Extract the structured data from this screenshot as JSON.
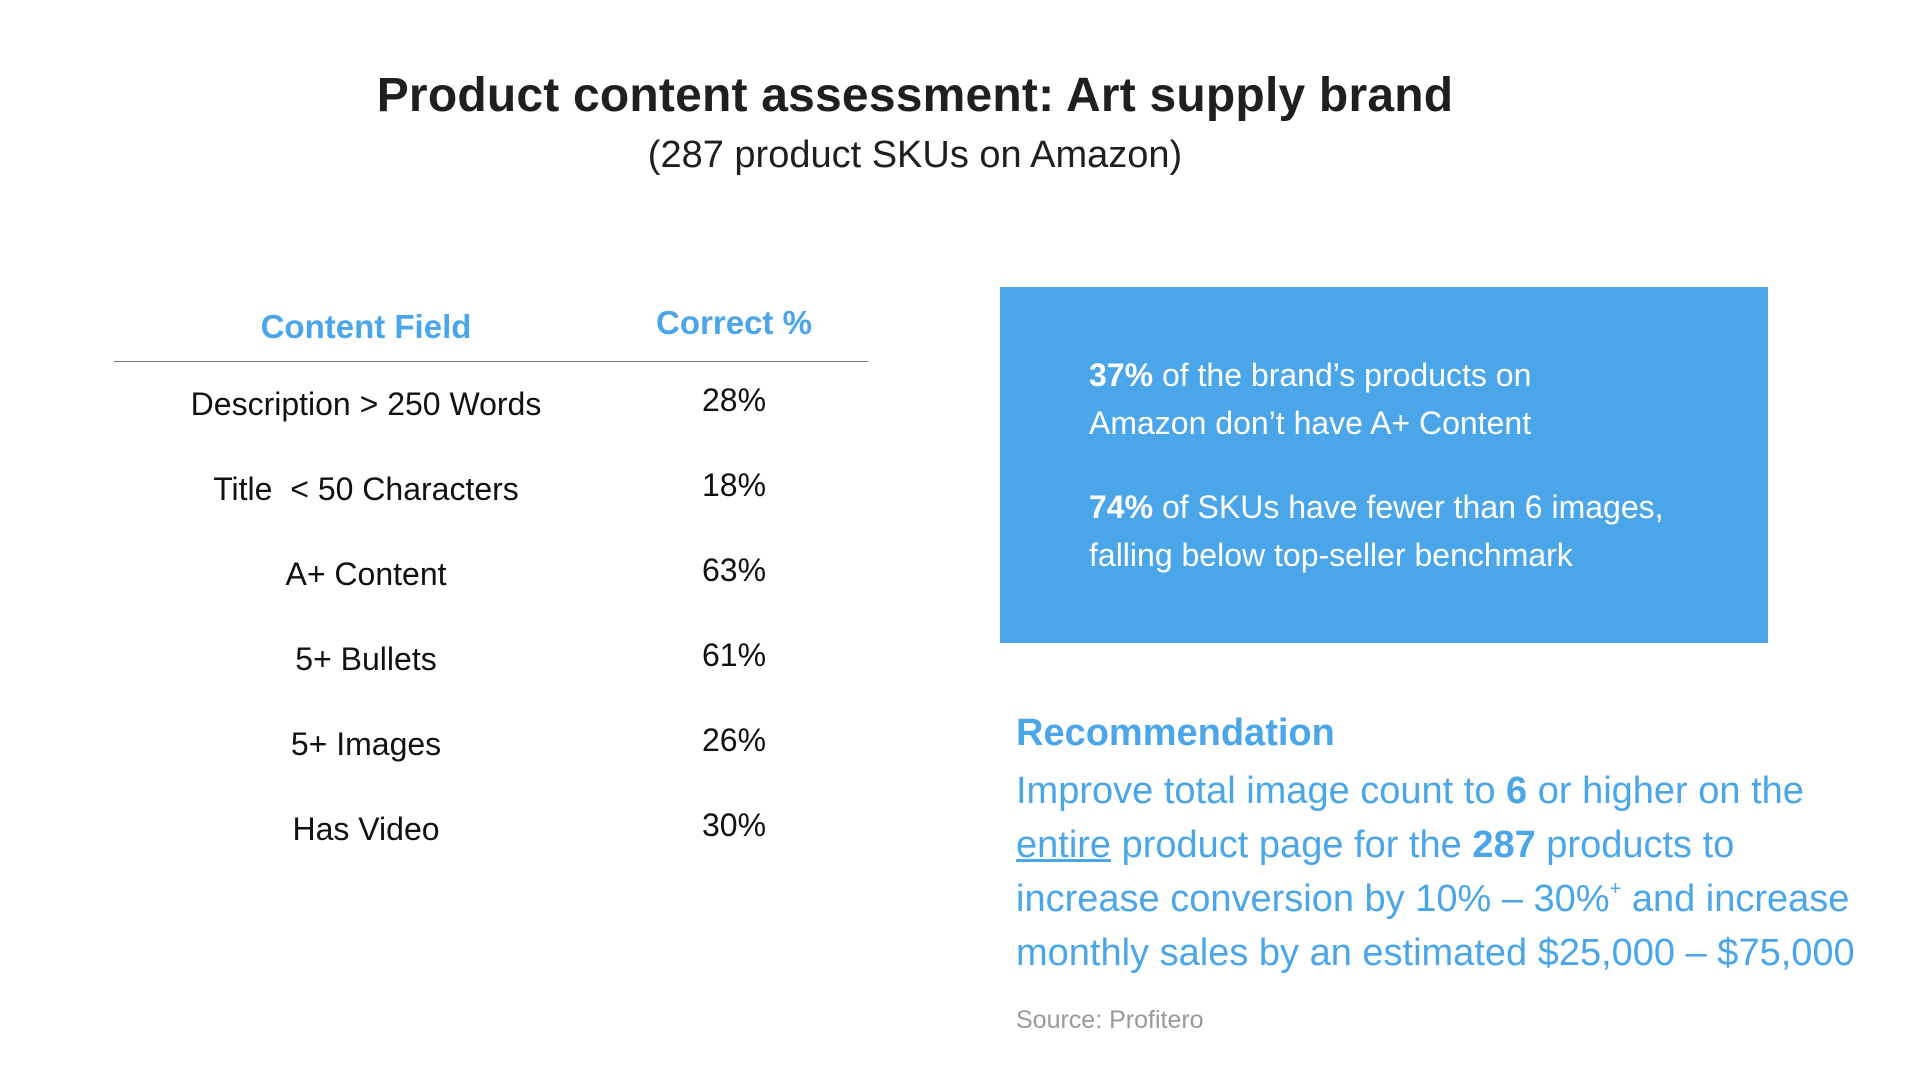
{
  "title": "Product content assessment: Art supply brand",
  "subtitle": "(287 product SKUs on Amazon)",
  "table": {
    "headers": {
      "field": "Content Field",
      "pct": "Correct %"
    },
    "rows": [
      {
        "field": "Description > 250 Words",
        "pct": "28%"
      },
      {
        "field": "Title  < 50 Characters",
        "pct": "18%"
      },
      {
        "field": "A+ Content",
        "pct": "63%"
      },
      {
        "field": "5+ Bullets",
        "pct": "61%"
      },
      {
        "field": "5+ Images",
        "pct": "26%"
      },
      {
        "field": "Has Video",
        "pct": "30%"
      }
    ]
  },
  "callout": {
    "stat1_value": "37%",
    "stat1_text_a": " of the brand’s products on",
    "stat1_text_b": "Amazon don’t have A+ Content",
    "stat2_value": "74%",
    "stat2_text_a": " of SKUs have fewer than 6 images,",
    "stat2_text_b": "falling below top-seller benchmark"
  },
  "recommendation": {
    "heading": "Recommendation",
    "l1_a": "Improve total image count to ",
    "l1_b": "6",
    "l1_c": " or higher on the",
    "l2_a": "entire",
    "l2_b": " product page for the ",
    "l2_c": "287",
    "l2_d": " products to",
    "l3_a": "increase conversion by 10% – 30%",
    "l3_sup": "+",
    "l3_b": " and increase",
    "l4": "monthly sales by an estimated $25,000 – $75,000"
  },
  "source": "Source: Profitero",
  "colors": {
    "accent": "#4aa6e8",
    "text": "#111111",
    "muted": "#9a9a9a"
  }
}
